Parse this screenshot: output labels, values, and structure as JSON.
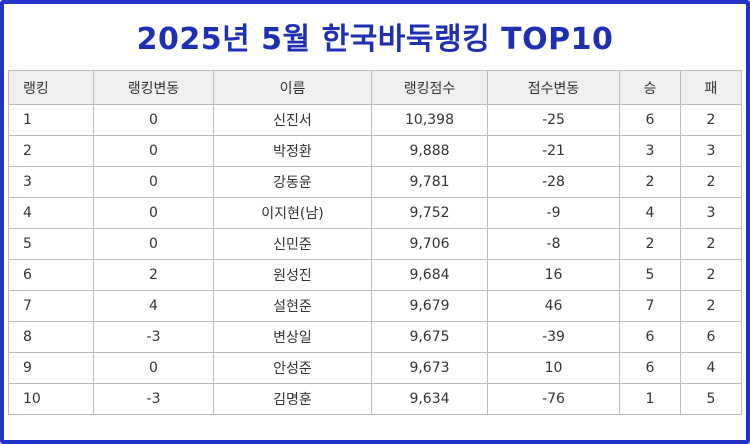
{
  "title": "2025년 5월 한국바둑랭킹 TOP10",
  "table": {
    "headers": [
      "랭킹",
      "랭킹변동",
      "이름",
      "랭킹점수",
      "점수변동",
      "승",
      "패"
    ],
    "rows": [
      [
        "1",
        "0",
        "신진서",
        "10,398",
        "-25",
        "6",
        "2"
      ],
      [
        "2",
        "0",
        "박정환",
        "9,888",
        "-21",
        "3",
        "3"
      ],
      [
        "3",
        "0",
        "강동윤",
        "9,781",
        "-28",
        "2",
        "2"
      ],
      [
        "4",
        "0",
        "이지현(남)",
        "9,752",
        "-9",
        "4",
        "3"
      ],
      [
        "5",
        "0",
        "신민준",
        "9,706",
        "-8",
        "2",
        "2"
      ],
      [
        "6",
        "2",
        "원성진",
        "9,684",
        "16",
        "5",
        "2"
      ],
      [
        "7",
        "4",
        "설현준",
        "9,679",
        "46",
        "7",
        "2"
      ],
      [
        "8",
        "-3",
        "변상일",
        "9,675",
        "-39",
        "6",
        "6"
      ],
      [
        "9",
        "0",
        "안성준",
        "9,673",
        "10",
        "6",
        "4"
      ],
      [
        "10",
        "-3",
        "김명훈",
        "9,634",
        "-76",
        "1",
        "5"
      ]
    ]
  }
}
